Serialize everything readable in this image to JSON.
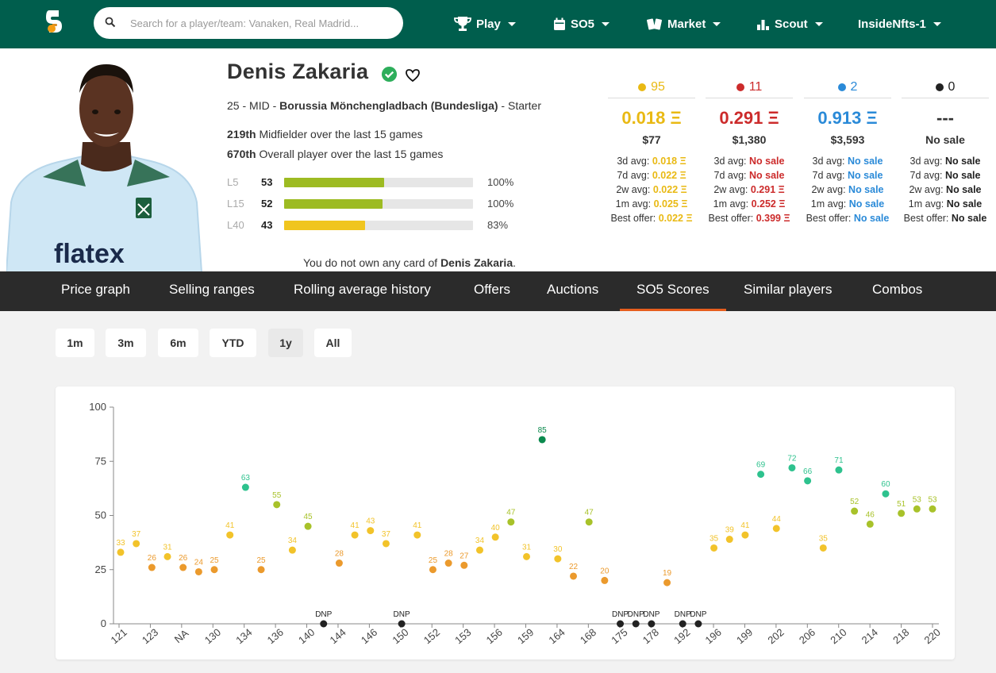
{
  "nav": {
    "search_placeholder": "Search for a player/team: Vanaken, Real Madrid...",
    "play": "Play",
    "so5": "SO5",
    "market": "Market",
    "scout": "Scout",
    "user": "InsideNfts-1"
  },
  "player": {
    "name": "Denis Zakaria",
    "age": "25",
    "position": "MID",
    "club": "Borussia Mönchengladbach (Bundesliga)",
    "status": "Starter",
    "rank1_num": "219th",
    "rank1_text": "Midfielder over the last 15 games",
    "rank2_num": "670th",
    "rank2_text": "Overall player over the last 15 games",
    "photo_text": "flatex",
    "scores": [
      {
        "label": "L5",
        "value": "53",
        "pct": "100%",
        "fill": 53,
        "color": "#9dbb22"
      },
      {
        "label": "L15",
        "value": "52",
        "pct": "100%",
        "fill": 52,
        "color": "#9dbb22"
      },
      {
        "label": "L40",
        "value": "43",
        "pct": "83%",
        "fill": 43,
        "color": "#f0c51f"
      }
    ],
    "ownership_prefix": "You do not own any card of ",
    "ownership_name": "Denis Zakaria",
    "ownership_suffix": "."
  },
  "scarcity": [
    {
      "count": "95",
      "color": "#e9b913",
      "price": "0.018 Ξ",
      "price_color": "#e9b913",
      "usd": "$77",
      "avgs": [
        [
          "3d avg: ",
          "0.018 Ξ"
        ],
        [
          "7d avg: ",
          "0.022 Ξ"
        ],
        [
          "2w avg: ",
          "0.022 Ξ"
        ],
        [
          "1m avg: ",
          "0.025 Ξ"
        ],
        [
          "Best offer: ",
          "0.022 Ξ"
        ]
      ]
    },
    {
      "count": "11",
      "color": "#cc2b2b",
      "price": "0.291 Ξ",
      "price_color": "#cc2b2b",
      "usd": "$1,380",
      "avgs": [
        [
          "3d avg: ",
          "No sale"
        ],
        [
          "7d avg: ",
          "No sale"
        ],
        [
          "2w avg: ",
          "0.291 Ξ"
        ],
        [
          "1m avg: ",
          "0.252 Ξ"
        ],
        [
          "Best offer: ",
          "0.399 Ξ"
        ]
      ]
    },
    {
      "count": "2",
      "color": "#2a8ad8",
      "price": "0.913 Ξ",
      "price_color": "#2a8ad8",
      "usd": "$3,593",
      "avgs": [
        [
          "3d avg: ",
          "No sale"
        ],
        [
          "7d avg: ",
          "No sale"
        ],
        [
          "2w avg: ",
          "No sale"
        ],
        [
          "1m avg: ",
          "No sale"
        ],
        [
          "Best offer: ",
          "No sale"
        ]
      ]
    },
    {
      "count": "0",
      "color": "#222222",
      "price": "---",
      "price_color": "#333333",
      "usd": "No sale",
      "avgs": [
        [
          "3d avg: ",
          "No sale"
        ],
        [
          "7d avg: ",
          "No sale"
        ],
        [
          "2w avg: ",
          "No sale"
        ],
        [
          "1m avg: ",
          "No sale"
        ],
        [
          "Best offer: ",
          "No sale"
        ]
      ]
    }
  ],
  "tabs": [
    "Price graph",
    "Selling ranges",
    "Rolling average history",
    "Offers",
    "Auctions",
    "SO5 Scores",
    "Similar players",
    "Combos"
  ],
  "active_tab": "SO5 Scores",
  "ranges": [
    "1m",
    "3m",
    "6m",
    "YTD",
    "1y",
    "All"
  ],
  "selected_range": "1y",
  "chart_data": {
    "type": "scatter",
    "ylim": [
      0,
      100
    ],
    "yticks": [
      0,
      25,
      50,
      75,
      100
    ],
    "x_tick_labels": [
      "121",
      "123",
      "NA",
      "130",
      "134",
      "136",
      "140",
      "144",
      "146",
      "150",
      "152",
      "153",
      "156",
      "159",
      "164",
      "168",
      "175",
      "178",
      "192",
      "196",
      "199",
      "202",
      "206",
      "210",
      "214",
      "218",
      "220"
    ],
    "points": [
      {
        "score": 33,
        "label": "33"
      },
      {
        "score": 37,
        "label": "37"
      },
      {
        "score": 26,
        "label": "26"
      },
      {
        "score": 31,
        "label": "31"
      },
      {
        "score": 26,
        "label": "26"
      },
      {
        "score": 24,
        "label": "24"
      },
      {
        "score": 25,
        "label": "25"
      },
      {
        "score": 41,
        "label": "41"
      },
      {
        "score": 63,
        "label": "63"
      },
      {
        "score": 25,
        "label": "25"
      },
      {
        "score": 55,
        "label": "55"
      },
      {
        "score": 34,
        "label": "34"
      },
      {
        "score": 45,
        "label": "45"
      },
      {
        "score": 0,
        "label": "DNP"
      },
      {
        "score": 28,
        "label": "28"
      },
      {
        "score": 41,
        "label": "41"
      },
      {
        "score": 43,
        "label": "43"
      },
      {
        "score": 37,
        "label": "37"
      },
      {
        "score": 0,
        "label": "DNP"
      },
      {
        "score": 41,
        "label": "41"
      },
      {
        "score": 25,
        "label": "25"
      },
      {
        "score": 28,
        "label": "28"
      },
      {
        "score": 27,
        "label": "27"
      },
      {
        "score": 34,
        "label": "34"
      },
      {
        "score": 40,
        "label": "40"
      },
      {
        "score": 47,
        "label": "47"
      },
      {
        "score": 31,
        "label": "31"
      },
      {
        "score": 85,
        "label": "85"
      },
      {
        "score": 30,
        "label": "30"
      },
      {
        "score": 22,
        "label": "22"
      },
      {
        "score": 47,
        "label": "47"
      },
      {
        "score": 20,
        "label": "20"
      },
      {
        "score": 0,
        "label": "DNP"
      },
      {
        "score": 0,
        "label": "DNP"
      },
      {
        "score": 0,
        "label": "DNP"
      },
      {
        "score": 19,
        "label": "19"
      },
      {
        "score": 0,
        "label": "DNP"
      },
      {
        "score": 0,
        "label": "DNP"
      },
      {
        "score": 35,
        "label": "35"
      },
      {
        "score": 39,
        "label": "39"
      },
      {
        "score": 41,
        "label": "41"
      },
      {
        "score": 69,
        "label": "69"
      },
      {
        "score": 44,
        "label": "44"
      },
      {
        "score": 72,
        "label": "72"
      },
      {
        "score": 66,
        "label": "66"
      },
      {
        "score": 35,
        "label": "35"
      },
      {
        "score": 71,
        "label": "71"
      },
      {
        "score": 52,
        "label": "52"
      },
      {
        "score": 46,
        "label": "46"
      },
      {
        "score": 60,
        "label": "60"
      },
      {
        "score": 51,
        "label": "51"
      },
      {
        "score": 53,
        "label": "53"
      },
      {
        "score": 53,
        "label": "53"
      }
    ]
  }
}
